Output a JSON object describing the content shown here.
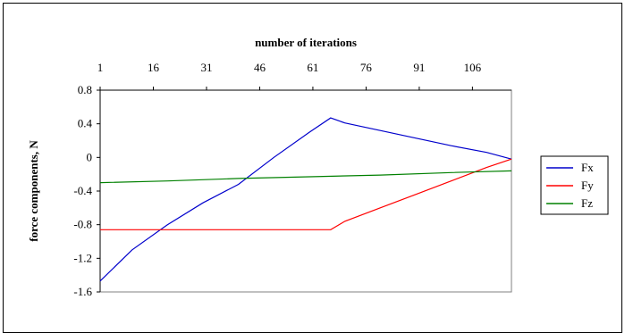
{
  "chart_data": {
    "type": "line",
    "title": "number of iterations",
    "xlabel": "number of iterations",
    "ylabel": "force components, N",
    "x_ticks": [
      "1",
      "16",
      "31",
      "46",
      "61",
      "76",
      "91",
      "106"
    ],
    "y_ticks": [
      "0.8",
      "0.4",
      "0",
      "-0.4",
      "-0.8",
      "-1.2",
      "-1.6"
    ],
    "xlim": [
      1,
      117
    ],
    "ylim": [
      -1.6,
      0.8
    ],
    "x_axis_position": "top",
    "grid": false,
    "legend_position": "right",
    "colors": {
      "Fx": "#0000cc",
      "Fy": "#ff0000",
      "Fz": "#008000"
    },
    "series": [
      {
        "name": "Fx",
        "x": [
          1,
          10,
          20,
          30,
          40,
          50,
          60,
          66,
          70,
          80,
          90,
          100,
          110,
          117
        ],
        "values": [
          -1.47,
          -1.1,
          -0.8,
          -0.54,
          -0.32,
          0.0,
          0.3,
          0.47,
          0.41,
          0.32,
          0.23,
          0.14,
          0.06,
          -0.02
        ]
      },
      {
        "name": "Fy",
        "x": [
          1,
          66,
          70,
          80,
          90,
          100,
          110,
          117
        ],
        "values": [
          -0.86,
          -0.86,
          -0.76,
          -0.6,
          -0.44,
          -0.28,
          -0.12,
          -0.02
        ]
      },
      {
        "name": "Fz",
        "x": [
          1,
          20,
          40,
          60,
          80,
          100,
          117
        ],
        "values": [
          -0.3,
          -0.28,
          -0.25,
          -0.23,
          -0.21,
          -0.18,
          -0.16
        ]
      }
    ]
  }
}
